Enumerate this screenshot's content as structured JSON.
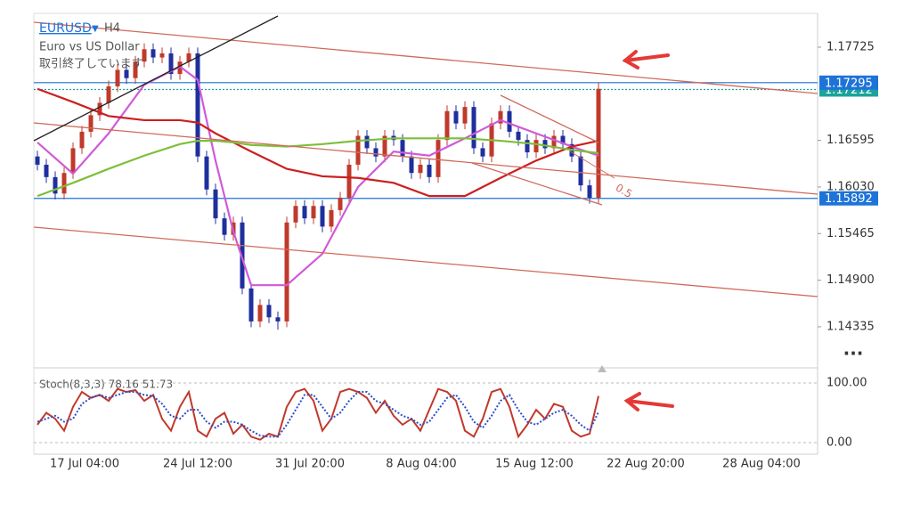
{
  "header": {
    "symbol": "EURUSD",
    "timeframe": "H4",
    "description": "Euro vs US Dollar",
    "status": "取引終了しています"
  },
  "chart_data": {
    "type": "candlestick",
    "open": [
      1.164,
      1.163,
      1.1615,
      1.1595,
      1.162,
      1.165,
      1.167,
      1.169,
      1.1705,
      1.1725,
      1.1745,
      1.1735,
      1.1755,
      1.177,
      1.176,
      1.1765,
      1.174,
      1.1755,
      1.1765,
      1.164,
      1.16,
      1.1565,
      1.1545,
      1.156,
      1.148,
      1.144,
      1.146,
      1.1445,
      1.144,
      1.156,
      1.158,
      1.1565,
      1.158,
      1.1555,
      1.1575,
      1.159,
      1.163,
      1.1665,
      1.165,
      1.164,
      1.1665,
      1.166,
      1.164,
      1.162,
      1.163,
      1.1615,
      1.166,
      1.1695,
      1.168,
      1.17,
      1.165,
      1.164,
      1.168,
      1.1695,
      1.167,
      1.166,
      1.1645,
      1.166,
      1.165,
      1.1665,
      1.1655,
      1.164,
      1.1605,
      1.159
    ],
    "high": [
      1.1647,
      1.1637,
      1.1622,
      1.1627,
      1.1657,
      1.1677,
      1.1697,
      1.1712,
      1.1732,
      1.1752,
      1.1752,
      1.1762,
      1.1777,
      1.1777,
      1.1772,
      1.1772,
      1.1762,
      1.1772,
      1.1772,
      1.1647,
      1.1607,
      1.1572,
      1.1567,
      1.1567,
      1.1487,
      1.1467,
      1.1467,
      1.1452,
      1.1567,
      1.1587,
      1.1587,
      1.1587,
      1.1587,
      1.1582,
      1.1597,
      1.1637,
      1.1672,
      1.1672,
      1.1657,
      1.1672,
      1.1672,
      1.1667,
      1.1647,
      1.1637,
      1.1637,
      1.1667,
      1.1702,
      1.1702,
      1.1707,
      1.1707,
      1.1657,
      1.1687,
      1.1702,
      1.1702,
      1.1677,
      1.1667,
      1.1667,
      1.1667,
      1.1672,
      1.1672,
      1.1662,
      1.1647,
      1.1612,
      1.173
    ],
    "low": [
      1.1623,
      1.1608,
      1.1588,
      1.1588,
      1.1613,
      1.1643,
      1.1663,
      1.1683,
      1.1698,
      1.1718,
      1.1728,
      1.1728,
      1.1748,
      1.1753,
      1.1753,
      1.1733,
      1.1733,
      1.1748,
      1.1633,
      1.1593,
      1.1558,
      1.1538,
      1.1538,
      1.1473,
      1.1433,
      1.1433,
      1.1438,
      1.143,
      1.1433,
      1.1553,
      1.1558,
      1.1558,
      1.1548,
      1.1548,
      1.1568,
      1.1583,
      1.1623,
      1.1643,
      1.1633,
      1.1633,
      1.1653,
      1.1633,
      1.1613,
      1.1613,
      1.1608,
      1.1608,
      1.1653,
      1.1673,
      1.1673,
      1.1643,
      1.1633,
      1.1633,
      1.1673,
      1.1663,
      1.1653,
      1.1638,
      1.1638,
      1.1643,
      1.1643,
      1.1648,
      1.1633,
      1.1598,
      1.1583,
      1.1583
    ],
    "close": [
      1.163,
      1.1615,
      1.1595,
      1.162,
      1.165,
      1.167,
      1.169,
      1.1705,
      1.1725,
      1.1745,
      1.1735,
      1.1755,
      1.177,
      1.176,
      1.1765,
      1.174,
      1.1755,
      1.1765,
      1.164,
      1.16,
      1.1565,
      1.1545,
      1.156,
      1.148,
      1.144,
      1.146,
      1.1445,
      1.144,
      1.156,
      1.158,
      1.1565,
      1.158,
      1.1555,
      1.1575,
      1.159,
      1.163,
      1.1665,
      1.165,
      1.164,
      1.1665,
      1.166,
      1.164,
      1.162,
      1.163,
      1.1615,
      1.166,
      1.1695,
      1.168,
      1.17,
      1.165,
      1.164,
      1.168,
      1.1695,
      1.167,
      1.166,
      1.1645,
      1.166,
      1.165,
      1.1665,
      1.1655,
      1.164,
      1.1605,
      1.159,
      1.1722
    ],
    "up_color": "#c0392b",
    "down_color": "#1f2f9e",
    "ylim": [
      1.1387,
      1.18135
    ],
    "yticks": [
      1.17725,
      1.16595,
      {
        "value": 1.1603,
        "label": "1.16030"
      },
      1.15465,
      {
        "value": 1.149,
        "label": "1.14900"
      },
      1.14335
    ],
    "indicators": [
      {
        "color": "#d05ad8",
        "x": [
          0,
          4,
          8,
          12,
          16,
          18,
          20,
          22,
          24,
          28,
          32,
          36,
          40,
          44,
          48,
          52,
          56,
          60,
          63
        ],
        "values": [
          1.1657,
          1.1619,
          1.1668,
          1.1727,
          1.1749,
          1.1733,
          1.1635,
          1.1549,
          1.1484,
          1.1484,
          1.1522,
          1.1603,
          1.1646,
          1.1641,
          1.1662,
          1.1684,
          1.1668,
          1.1652,
          1.1641
        ]
      },
      {
        "color": "#cc1f1f",
        "x": [
          0,
          4,
          8,
          12,
          16,
          18,
          20,
          22,
          24,
          28,
          32,
          36,
          40,
          44,
          48,
          52,
          56,
          60,
          63
        ],
        "values": [
          1.1722,
          1.1706,
          1.1689,
          1.1684,
          1.1684,
          1.1681,
          1.1668,
          1.1657,
          1.1646,
          1.1625,
          1.1616,
          1.1614,
          1.1608,
          1.1592,
          1.1592,
          1.1614,
          1.1635,
          1.1652,
          1.1659
        ]
      },
      {
        "color": "#7cbf3a",
        "x": [
          0,
          4,
          8,
          12,
          16,
          18,
          20,
          22,
          24,
          28,
          32,
          36,
          40,
          44,
          48,
          52,
          56,
          60,
          63
        ],
        "values": [
          1.1592,
          1.1608,
          1.1625,
          1.1641,
          1.1655,
          1.1659,
          1.1659,
          1.1657,
          1.1654,
          1.1652,
          1.1655,
          1.1659,
          1.1662,
          1.1662,
          1.1662,
          1.1659,
          1.1655,
          1.1648,
          1.1644
        ]
      }
    ],
    "price_lines": [
      {
        "value": 1.17212,
        "color": "#1aa39a",
        "dash": true
      },
      {
        "value": 1.17295,
        "color": "#1e73d8",
        "dash": false
      },
      {
        "value": 1.15892,
        "color": "#1e73d8",
        "dash": false
      }
    ],
    "annotation": "0.5",
    "time_labels": [
      "17 Jul 04:00",
      "24 Jul 12:00",
      "31 Jul 20:00",
      "8 Aug 04:00",
      "15 Aug 12:00",
      "22 Aug 20:00",
      "28 Aug 04:00"
    ]
  },
  "stochastic": {
    "type": "line",
    "label": "Stoch(8,3,3) 78.16 51.73",
    "ylim": [
      -19.4,
      114.9
    ],
    "yticks": [
      {
        "value": 100,
        "label": "100.00"
      },
      {
        "value": 0,
        "label": "0.00"
      }
    ],
    "series": [
      {
        "color": "#c0392b",
        "dash": false,
        "values": [
          30,
          50,
          40,
          20,
          60,
          85,
          75,
          80,
          70,
          90,
          85,
          88,
          70,
          80,
          40,
          20,
          60,
          85,
          20,
          10,
          40,
          50,
          15,
          30,
          10,
          5,
          15,
          10,
          60,
          85,
          90,
          70,
          20,
          40,
          85,
          90,
          85,
          75,
          50,
          70,
          45,
          30,
          40,
          20,
          55,
          90,
          85,
          70,
          20,
          10,
          40,
          85,
          90,
          60,
          10,
          30,
          55,
          40,
          65,
          60,
          20,
          10,
          15,
          78.16
        ]
      },
      {
        "color": "#2b4fc9",
        "dash": true,
        "values": [
          35,
          40,
          45,
          35,
          40,
          65,
          75,
          80,
          75,
          80,
          85,
          85,
          80,
          78,
          65,
          45,
          40,
          55,
          55,
          35,
          25,
          35,
          35,
          30,
          20,
          12,
          10,
          10,
          30,
          55,
          80,
          80,
          60,
          40,
          50,
          70,
          85,
          85,
          70,
          65,
          55,
          45,
          40,
          30,
          35,
          55,
          75,
          80,
          60,
          35,
          25,
          45,
          70,
          80,
          55,
          35,
          30,
          40,
          50,
          55,
          45,
          30,
          20,
          51.73
        ]
      }
    ]
  }
}
